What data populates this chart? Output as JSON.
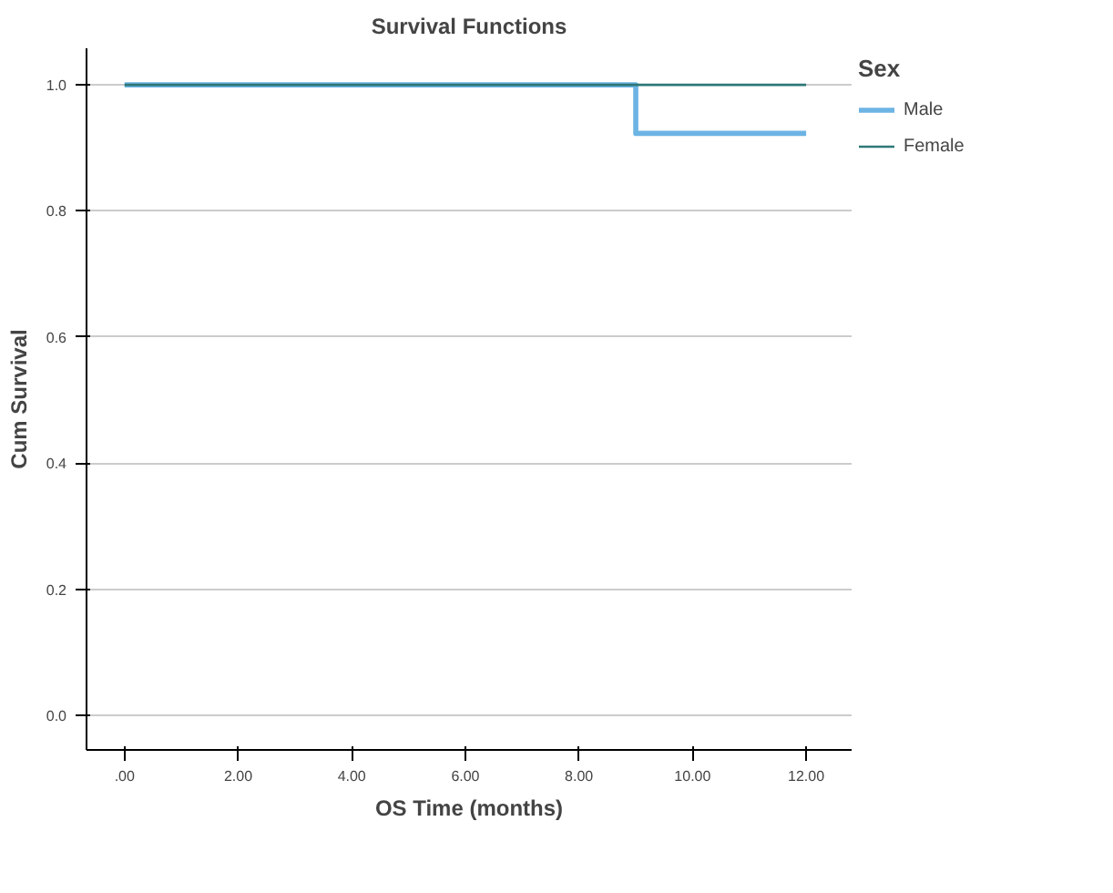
{
  "chart_data": {
    "type": "step",
    "title": "Survival Functions",
    "xlabel": "OS Time (months)",
    "ylabel": "Cum Survival",
    "legend_title": "Sex",
    "series": [
      {
        "name": "Male",
        "color": "#6cb4e4",
        "x": [
          0,
          9,
          12
        ],
        "values": [
          1.0,
          0.923,
          0.923
        ]
      },
      {
        "name": "Female",
        "color": "#2e7777",
        "x": [
          0,
          12
        ],
        "values": [
          1.0,
          1.0
        ]
      }
    ],
    "xlim": [
      -0.67,
      12.8
    ],
    "ylim": [
      -0.055,
      1.058
    ],
    "xticks": [
      {
        "value": 0,
        "label": ".00"
      },
      {
        "value": 2,
        "label": "2.00"
      },
      {
        "value": 4,
        "label": "4.00"
      },
      {
        "value": 6,
        "label": "6.00"
      },
      {
        "value": 8,
        "label": "8.00"
      },
      {
        "value": 10,
        "label": "10.00"
      },
      {
        "value": 12,
        "label": "12.00"
      }
    ],
    "yticks": [
      {
        "value": 0,
        "label": "0.0"
      },
      {
        "value": 0.2,
        "label": "0.2"
      },
      {
        "value": 0.4,
        "label": "0.4"
      },
      {
        "value": 0.6,
        "label": "0.6"
      },
      {
        "value": 0.8,
        "label": "0.8"
      },
      {
        "value": 1.0,
        "label": "1.0"
      }
    ],
    "grid": "y",
    "legend": "right"
  }
}
